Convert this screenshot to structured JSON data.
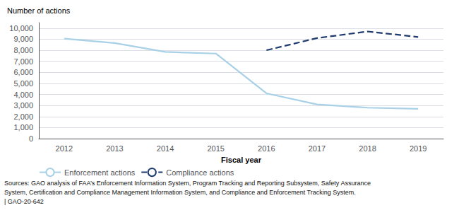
{
  "chart_data": {
    "type": "line",
    "xlabel": "Fiscal year",
    "ylabel": "Number of actions",
    "series": [
      {
        "name": "Enforcement actions",
        "color": "#a8d0e6",
        "line_style": "solid",
        "x": [
          2012,
          2013,
          2014,
          2015,
          2016,
          2017,
          2018,
          2019
        ],
        "values": [
          9050,
          8650,
          7850,
          7700,
          4100,
          3100,
          2800,
          2700
        ]
      },
      {
        "name": "Compliance actions",
        "color": "#1f3a6e",
        "line_style": "dashed",
        "x": [
          2016,
          2017,
          2018,
          2019
        ],
        "values": [
          8000,
          9100,
          9700,
          9200
        ]
      }
    ],
    "xlim": [
      2011.5,
      2019.5
    ],
    "xticks": [
      2012,
      2013,
      2014,
      2015,
      2016,
      2017,
      2018,
      2019
    ],
    "ylim": [
      0,
      10500
    ],
    "yticks": [
      0,
      {
        "value": 1000,
        "label": "1,000"
      },
      {
        "value": 2000,
        "label": "2,000"
      },
      {
        "value": 3000,
        "label": "3,000"
      },
      {
        "value": 4000,
        "label": "4,000"
      },
      {
        "value": 5000,
        "label": "5,000"
      },
      {
        "value": 6000,
        "label": "6,000"
      },
      {
        "value": 7000,
        "label": "7,000"
      },
      {
        "value": 8000,
        "label": "8,000"
      },
      {
        "value": 9000,
        "label": "9,000"
      },
      {
        "value": 10000,
        "label": "10,000"
      }
    ],
    "grid": true,
    "legend": "lower left",
    "annotations": [
      "Sources: GAO analysis of FAA’s Enforcement Information System, Program Tracking and Reporting Subsystem, Safety Assurance",
      "System, Certification and Compliance Management Information System, and Compliance and Enforcement Tracking System.",
      "| GAO-20-642"
    ]
  }
}
